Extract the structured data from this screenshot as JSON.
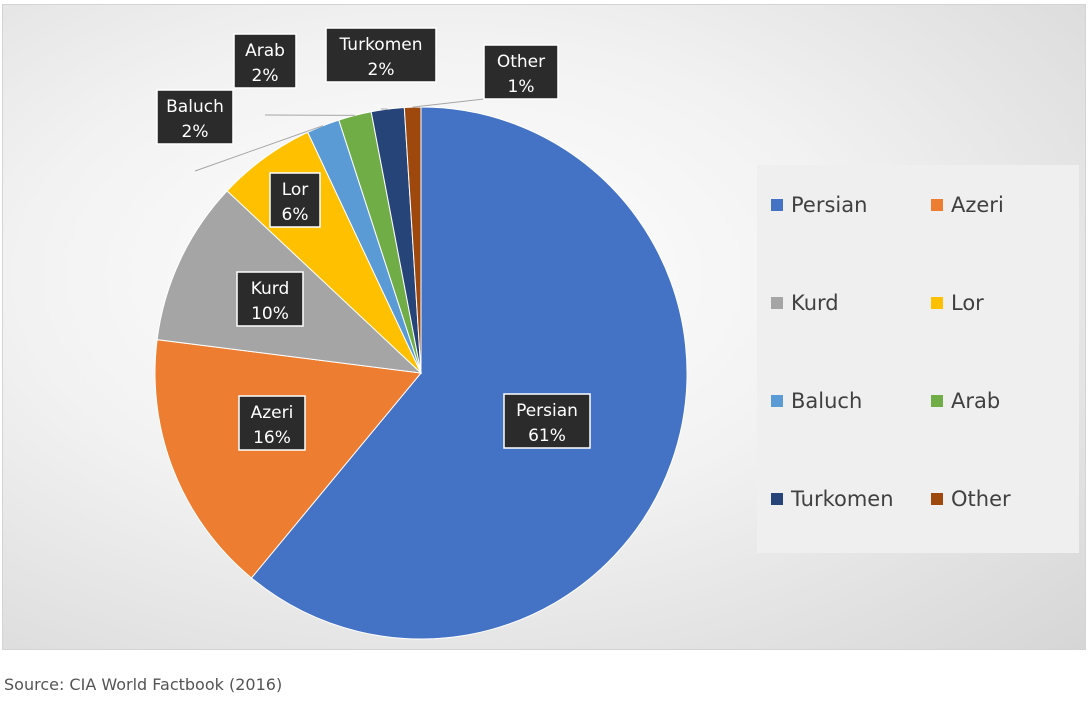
{
  "chart_data": {
    "type": "pie",
    "title": "",
    "slices": [
      {
        "name": "Persian",
        "value": 61,
        "label": "61%",
        "color": "#4472C4"
      },
      {
        "name": "Azeri",
        "value": 16,
        "label": "16%",
        "color": "#ED7D31"
      },
      {
        "name": "Kurd",
        "value": 10,
        "label": "10%",
        "color": "#A5A5A5"
      },
      {
        "name": "Lor",
        "value": 6,
        "label": "6%",
        "color": "#FFC000"
      },
      {
        "name": "Baluch",
        "value": 2,
        "label": "2%",
        "color": "#5B9BD5"
      },
      {
        "name": "Arab",
        "value": 2,
        "label": "2%",
        "color": "#70AD47"
      },
      {
        "name": "Turkomen",
        "value": 2,
        "label": "2%",
        "color": "#264478"
      },
      {
        "name": "Other",
        "value": 1,
        "label": "1%",
        "color": "#9E480E"
      }
    ],
    "legend_position": "right"
  },
  "source_text": "Source: CIA World Factbook (2016)"
}
